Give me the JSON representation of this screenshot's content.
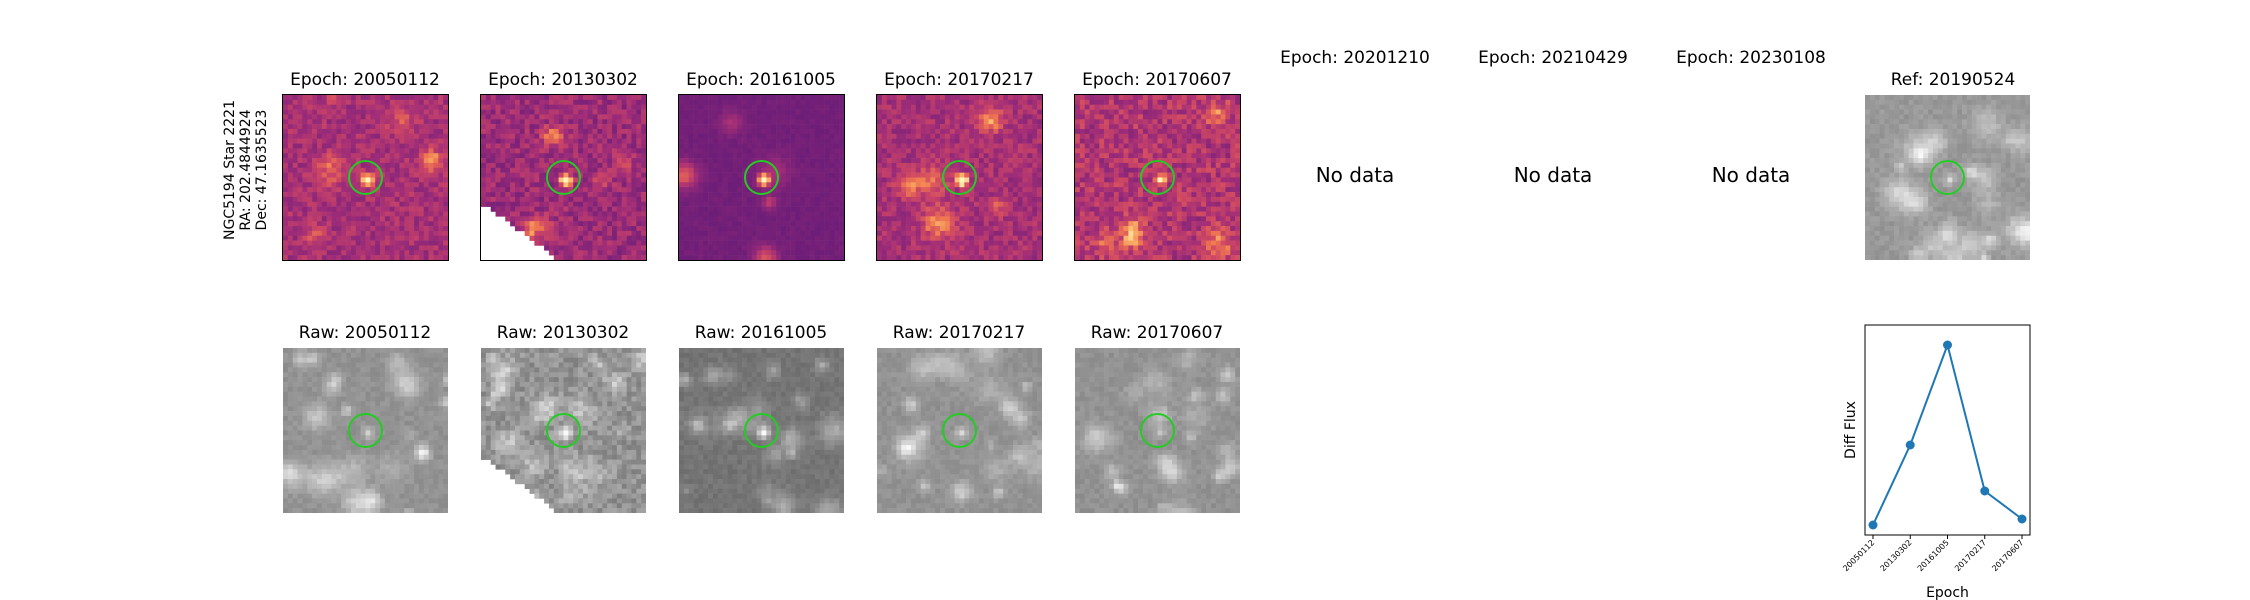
{
  "target": {
    "name": "NGC5194 Star 2221",
    "ra": "RA: 202.4844924",
    "dec": "Dec: 47.1635523"
  },
  "diff_panels": [
    {
      "title": "Epoch: 20050112",
      "has_data": true
    },
    {
      "title": "Epoch: 20130302",
      "has_data": true
    },
    {
      "title": "Epoch: 20161005",
      "has_data": true
    },
    {
      "title": "Epoch: 20170217",
      "has_data": true
    },
    {
      "title": "Epoch: 20170607",
      "has_data": true
    },
    {
      "title": "Epoch: 20201210",
      "has_data": false,
      "message": "No data"
    },
    {
      "title": "Epoch: 20210429",
      "has_data": false,
      "message": "No data"
    },
    {
      "title": "Epoch: 20230108",
      "has_data": false,
      "message": "No data"
    }
  ],
  "ref_panel": {
    "title": "Ref: 20190524"
  },
  "raw_panels": [
    {
      "title": "Raw: 20050112"
    },
    {
      "title": "Raw: 20130302"
    },
    {
      "title": "Raw: 20161005"
    },
    {
      "title": "Raw: 20170217"
    },
    {
      "title": "Raw: 20170607"
    }
  ],
  "colors": {
    "aperture": "#22cc22",
    "series": "#1f77b4"
  },
  "chart_data": {
    "type": "line",
    "xlabel": "Epoch",
    "ylabel": "Diff Flux",
    "categories": [
      "20050112",
      "20130302",
      "20161005",
      "20170217",
      "20170607"
    ],
    "series": [
      {
        "values": [
          0.05,
          0.45,
          0.95,
          0.22,
          0.08
        ]
      }
    ],
    "ylim": [
      0,
      1.05
    ],
    "grid": false
  }
}
